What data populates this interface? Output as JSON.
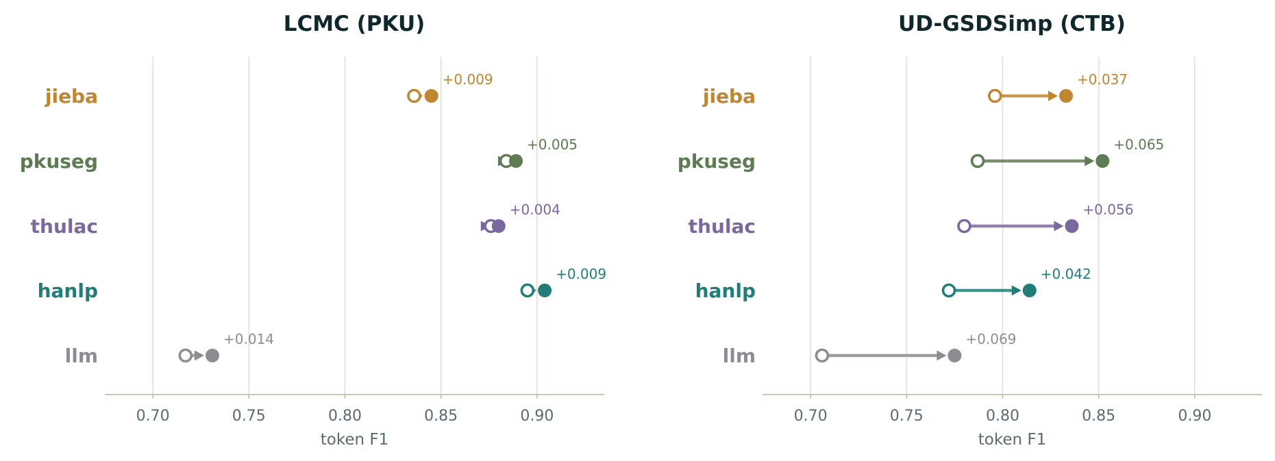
{
  "chart_data": [
    {
      "type": "dumbbell",
      "title": "LCMC (PKU)",
      "xlabel": "token F1",
      "xlim": [
        0.675,
        0.935
      ],
      "xticks": [
        0.7,
        0.75,
        0.8,
        0.85,
        0.9
      ],
      "tick_labels": [
        "0.70",
        "0.75",
        "0.80",
        "0.85",
        "0.90"
      ],
      "grid": "vertical",
      "rows": [
        {
          "name": "jieba",
          "color": "#c0862f",
          "before": 0.836,
          "after": 0.845,
          "delta": "+0.009"
        },
        {
          "name": "pkuseg",
          "color": "#5e7b53",
          "before": 0.884,
          "after": 0.889,
          "delta": "+0.005"
        },
        {
          "name": "thulac",
          "color": "#7a68a0",
          "before": 0.876,
          "after": 0.88,
          "delta": "+0.004"
        },
        {
          "name": "hanlp",
          "color": "#1f7f78",
          "before": 0.895,
          "after": 0.904,
          "delta": "+0.009"
        },
        {
          "name": "llm",
          "color": "#8d8d91",
          "before": 0.717,
          "after": 0.731,
          "delta": "+0.014"
        }
      ]
    },
    {
      "type": "dumbbell",
      "title": "UD-GSDSimp (CTB)",
      "xlabel": "token F1",
      "xlim": [
        0.675,
        0.935
      ],
      "xticks": [
        0.7,
        0.75,
        0.8,
        0.85,
        0.9
      ],
      "tick_labels": [
        "0.70",
        "0.75",
        "0.80",
        "0.85",
        "0.90"
      ],
      "grid": "vertical",
      "rows": [
        {
          "name": "jieba",
          "color": "#c0862f",
          "before": 0.796,
          "after": 0.833,
          "delta": "+0.037"
        },
        {
          "name": "pkuseg",
          "color": "#5e7b53",
          "before": 0.787,
          "after": 0.852,
          "delta": "+0.065"
        },
        {
          "name": "thulac",
          "color": "#7a68a0",
          "before": 0.78,
          "after": 0.836,
          "delta": "+0.056"
        },
        {
          "name": "hanlp",
          "color": "#1f7f78",
          "before": 0.772,
          "after": 0.814,
          "delta": "+0.042"
        },
        {
          "name": "llm",
          "color": "#8d8d91",
          "before": 0.706,
          "after": 0.775,
          "delta": "+0.069"
        }
      ]
    }
  ]
}
